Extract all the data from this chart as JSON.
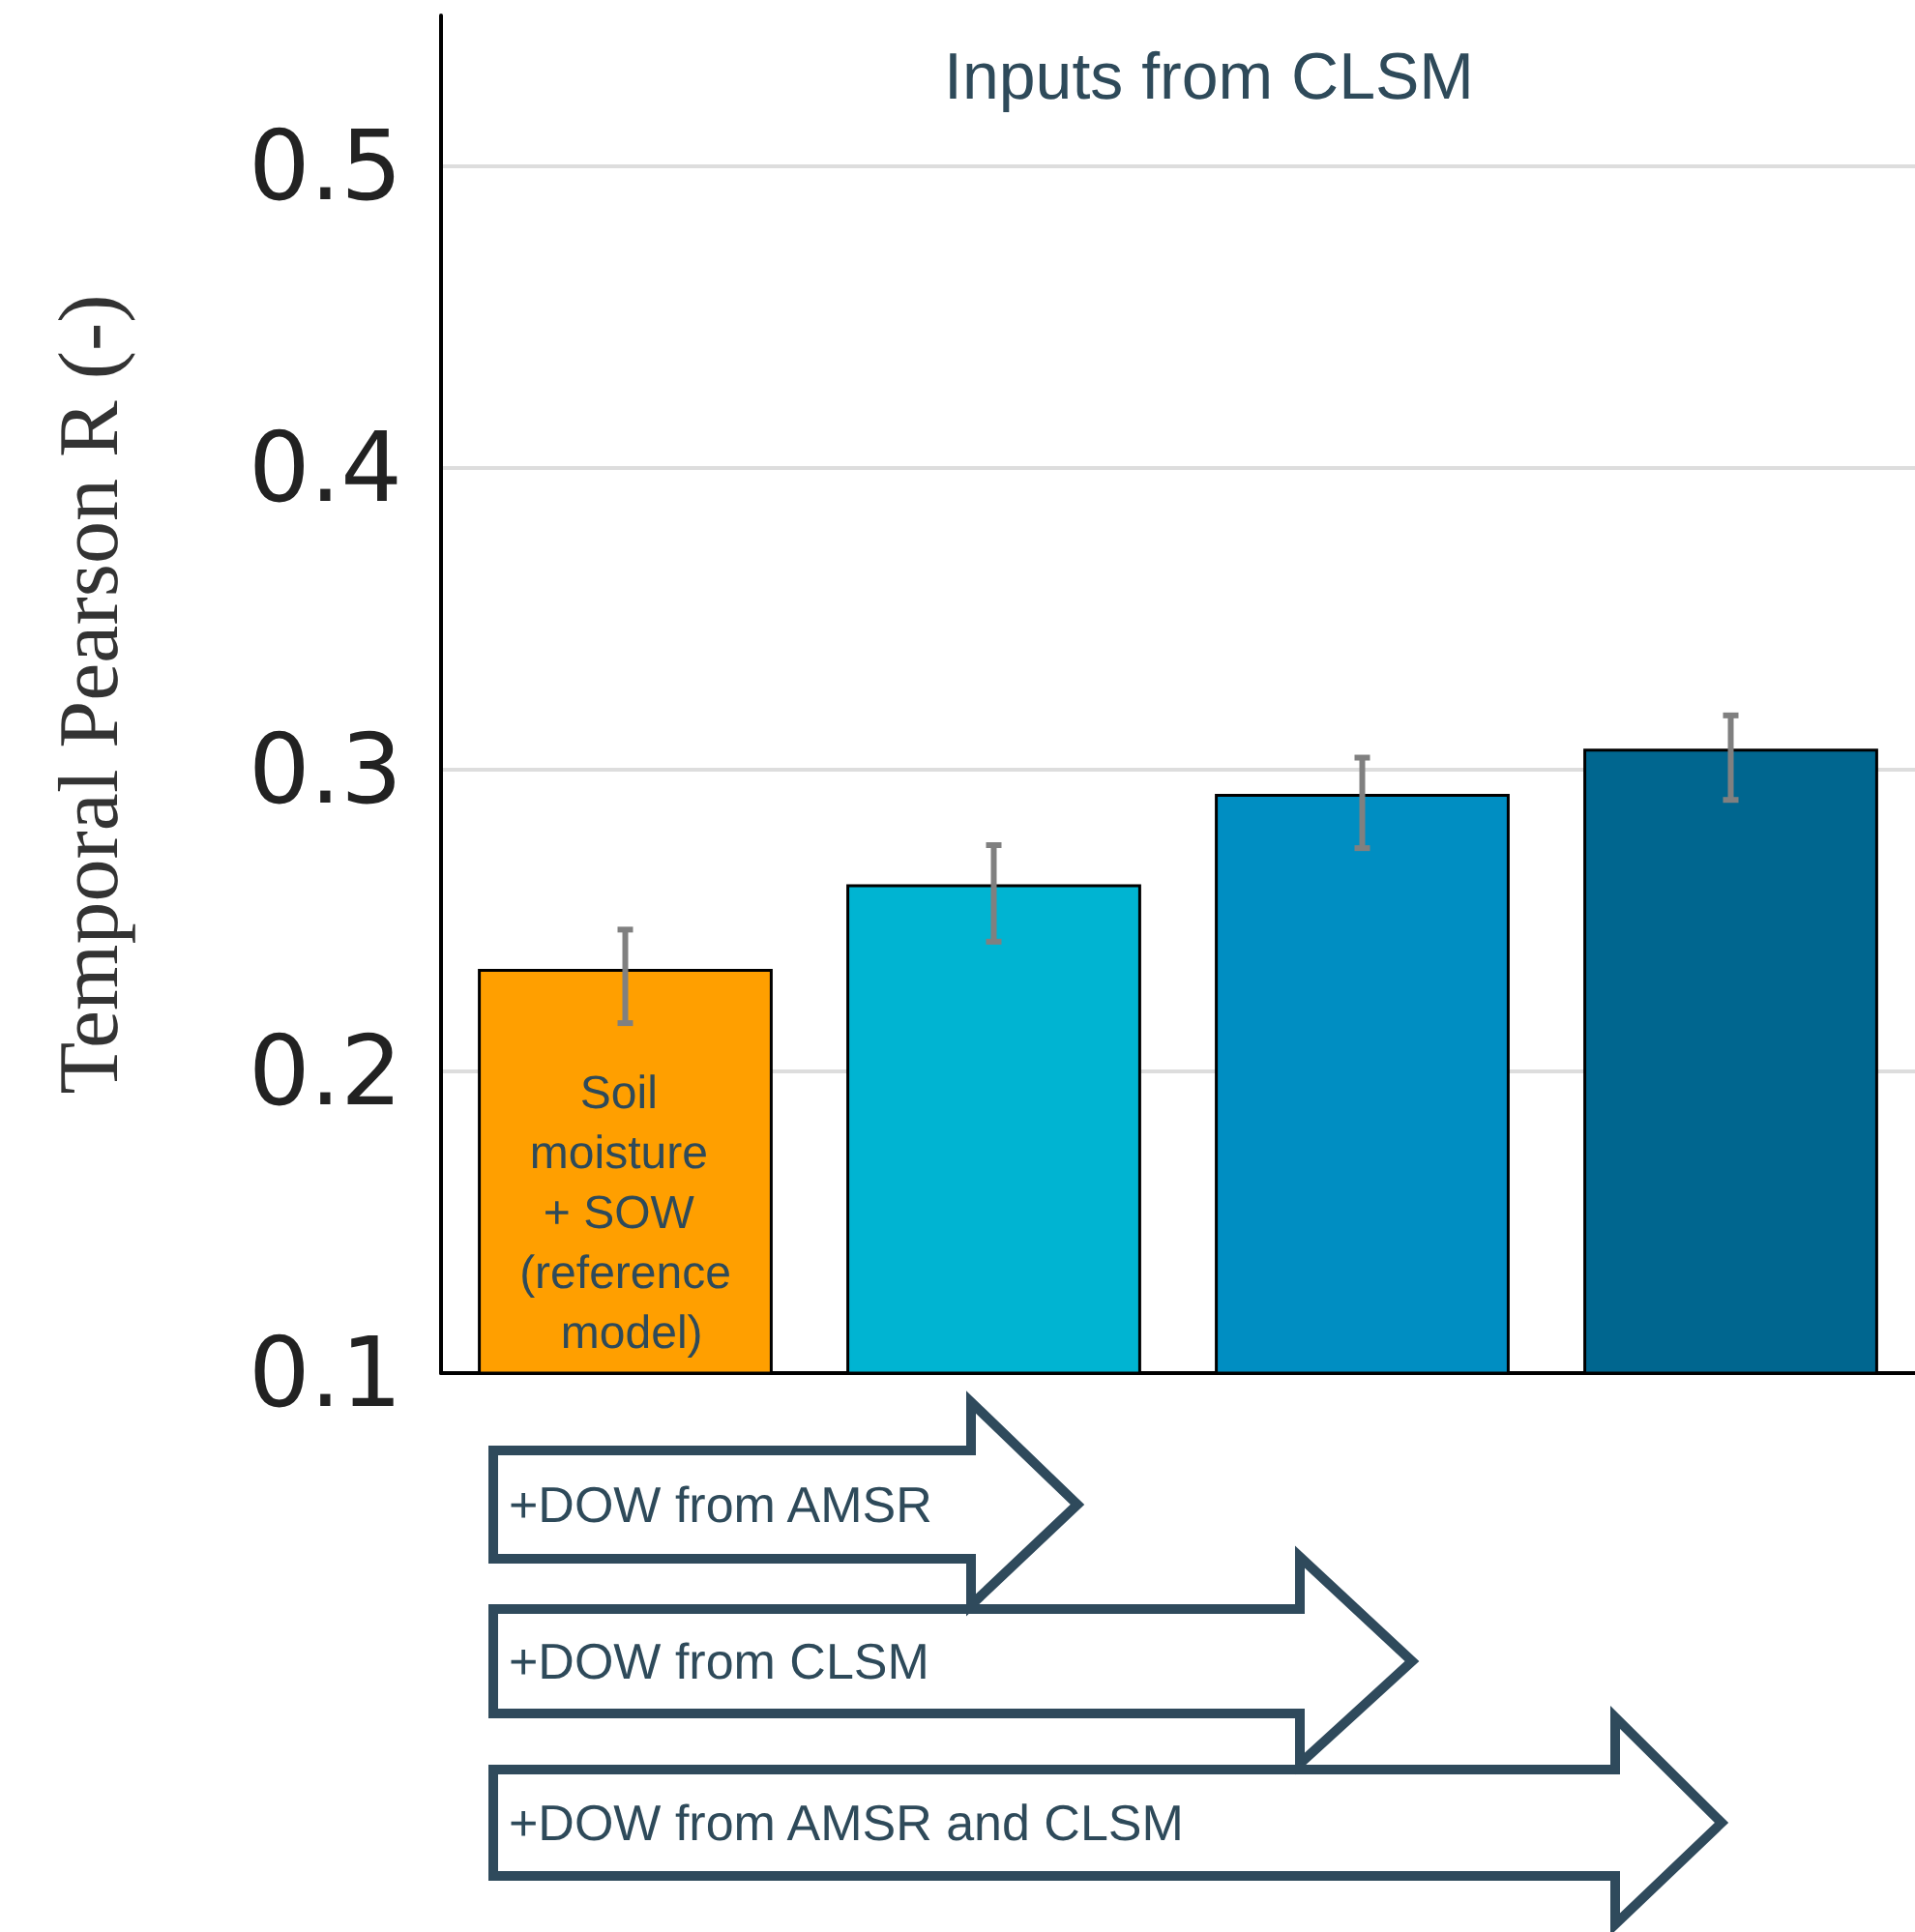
{
  "chart_data": {
    "type": "bar",
    "title": "Inputs from CLSM",
    "ylabel": "Temporal Pearson R (-)",
    "categories": [
      "Soil moisture + SOW (reference model)",
      null,
      null,
      null
    ],
    "values": [
      0.234,
      0.262,
      0.292,
      0.307
    ],
    "colors": [
      "#ff9f00",
      "#00b4d2",
      "#008ec2",
      "#00668f"
    ],
    "errors": [
      [
        0.216,
        0.247
      ],
      [
        0.243,
        0.275
      ],
      [
        0.274,
        0.304
      ],
      [
        0.29,
        0.318
      ]
    ],
    "ylim": [
      0.1,
      0.55
    ],
    "yticks": [
      0.1,
      0.2,
      0.3,
      0.4,
      0.5
    ],
    "grid": "y",
    "annotations": [
      "+DOW from AMSR",
      "+DOW from CLSM",
      "+DOW from AMSR and CLSM"
    ]
  }
}
